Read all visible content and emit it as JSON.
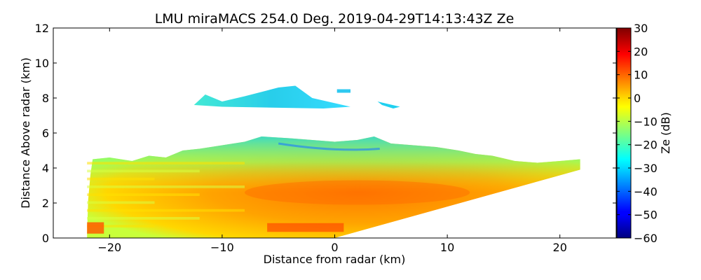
{
  "chart_data": {
    "type": "heatmap",
    "title": "LMU miraMACS 254.0 Deg. 2019-04-29T14:13:43Z  Ze",
    "xlabel": "Distance from radar (km)",
    "ylabel": "Distance Above radar  (km)",
    "xlim": [
      -25,
      25
    ],
    "ylim": [
      0,
      12
    ],
    "x_ticks": [
      "−20",
      "−10",
      "0",
      "10",
      "20"
    ],
    "x_tick_values": [
      -20,
      -10,
      0,
      10,
      20
    ],
    "y_ticks": [
      "0",
      "2",
      "4",
      "6",
      "8",
      "10",
      "12"
    ],
    "y_tick_values": [
      0,
      2,
      4,
      6,
      8,
      10,
      12
    ],
    "colorbar": {
      "label": "Ze (dB)",
      "range": [
        -60,
        30
      ],
      "ticks": [
        "30",
        "20",
        "10",
        "0",
        "−10",
        "−20",
        "−30",
        "−40",
        "−50",
        "−60"
      ],
      "tick_values": [
        30,
        20,
        10,
        0,
        -10,
        -20,
        -30,
        -40,
        -50,
        -60
      ],
      "colormap": "jet"
    },
    "echo_regions": [
      {
        "name": "main-echo",
        "x_km": [
          -22,
          21.8
        ],
        "y_km_bottom": 0,
        "y_km_top_left": 4.8,
        "y_km_top_center": 5.8,
        "y_km_top_right": 4.5,
        "ze_db_range": [
          -30,
          20
        ]
      },
      {
        "name": "upper-echo-layer",
        "x_km": [
          -12.5,
          1.4
        ],
        "y_km": [
          7.4,
          8.7
        ],
        "ze_db_range": [
          -35,
          -20
        ]
      },
      {
        "name": "upper-echo-fragment-right",
        "x_km": [
          3.8,
          5.8
        ],
        "y_km": [
          7.4,
          7.9
        ],
        "ze_db_range": [
          -35,
          -25
        ]
      },
      {
        "name": "upper-echo-fragment-center",
        "x_km": [
          0.2,
          1.4
        ],
        "y_km": [
          8.3,
          8.5
        ],
        "ze_db_range": [
          -35,
          -25
        ]
      }
    ]
  }
}
